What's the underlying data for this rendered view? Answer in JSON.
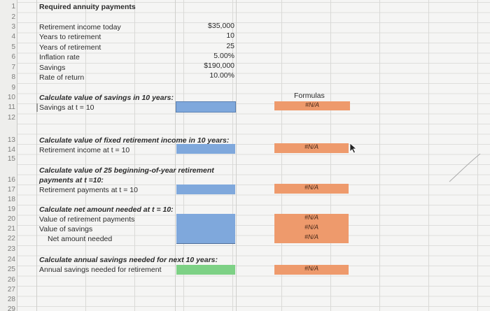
{
  "rows": [
    "1",
    "2",
    "3",
    "4",
    "5",
    "6",
    "7",
    "8",
    "9",
    "10",
    "11",
    "12",
    "13",
    "14",
    "15",
    "16",
    "17",
    "18",
    "19",
    "20",
    "21",
    "22",
    "23",
    "24",
    "25",
    "26",
    "27",
    "28",
    "29"
  ],
  "title": "Required annuity payments",
  "inputs": [
    {
      "label": "Retirement income today",
      "value": "$35,000"
    },
    {
      "label": "Years to retirement",
      "value": "10"
    },
    {
      "label": "Years of retirement",
      "value": "25"
    },
    {
      "label": "Inflation rate",
      "value": "5.00%"
    },
    {
      "label": "Savings",
      "value": "$190,000"
    },
    {
      "label": "Rate of return",
      "value": "10.00%"
    }
  ],
  "section1": {
    "heading": "Calculate value of savings in 10 years:",
    "line": "Savings at t = 10"
  },
  "section2": {
    "heading": "Calculate value of fixed retirement income in 10 years:",
    "line": "Retirement income at t = 10"
  },
  "section3": {
    "heading_a": "Calculate value of 25 beginning-of-year retirement",
    "heading_b": "payments at t =10:",
    "line": "Retirement payments at t = 10"
  },
  "section4": {
    "heading": "Calculate net amount needed at t = 10:",
    "line1": "Value of retirement payments",
    "line2": "Value of savings",
    "line3": "Net amount needed"
  },
  "section5": {
    "heading": "Calculate annual savings needed for next 10 years:",
    "line": "Annual savings needed for retirement"
  },
  "formulas": {
    "header": "Formulas",
    "na": "#N/A"
  },
  "colors": {
    "blue": "#7fa8dc",
    "green": "#7dd185",
    "orange": "#ee9a6c"
  }
}
